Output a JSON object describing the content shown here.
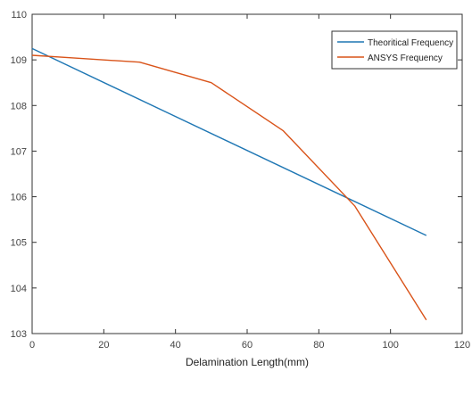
{
  "chart_data": {
    "type": "line",
    "xlabel": "Delamination Length(mm)",
    "xlim": [
      0,
      120
    ],
    "ylim": [
      103,
      110
    ],
    "x_ticks": [
      0,
      20,
      40,
      60,
      80,
      100,
      120
    ],
    "y_ticks": [
      103,
      104,
      105,
      106,
      107,
      108,
      109,
      110
    ],
    "grid": false,
    "legend_position": "top-right",
    "series": [
      {
        "name": "Theoritical Frequency",
        "color": "#1f77b4",
        "x": [
          0,
          110
        ],
        "y": [
          109.25,
          105.15
        ]
      },
      {
        "name": "ANSYS Frequency",
        "color": "#d95319",
        "x": [
          0,
          10,
          30,
          50,
          70,
          90,
          110
        ],
        "y": [
          109.1,
          109.05,
          108.95,
          108.5,
          107.45,
          105.8,
          103.3
        ]
      }
    ]
  }
}
